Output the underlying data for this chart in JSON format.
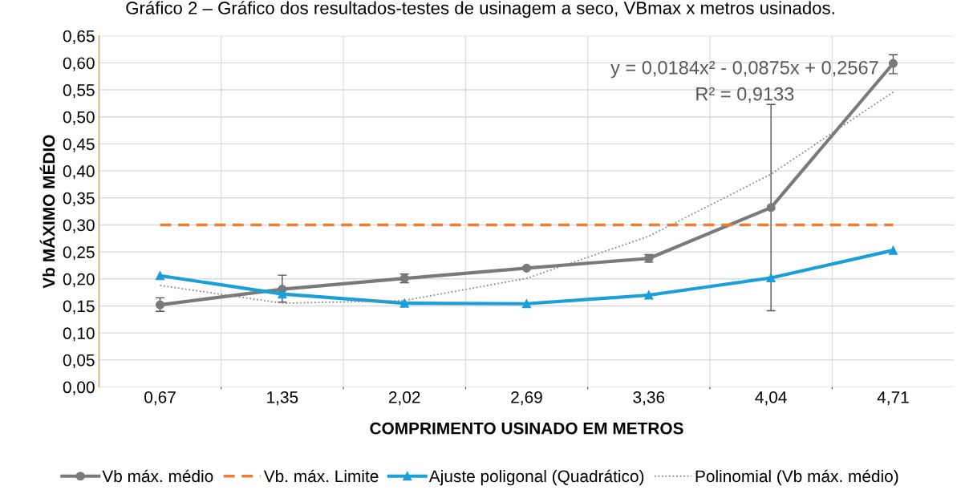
{
  "chart_data": {
    "type": "line",
    "title": "Gráfico 2 – Gráfico dos resultados-testes de usinagem a seco, VBmax x metros usinados.",
    "xlabel": "COMPRIMENTO USINADO EM METROS",
    "ylabel": "Vb MÁXIMO MÉDIO",
    "categories": [
      "0,67",
      "1,35",
      "2,02",
      "2,69",
      "3,36",
      "4,04",
      "4,71"
    ],
    "series": [
      {
        "name": "Vb máx. médio",
        "color": "#7a7a7a",
        "marker": "circle",
        "line_style": "solid",
        "values": [
          0.152,
          0.181,
          0.201,
          0.22,
          0.238,
          0.332,
          0.599
        ],
        "errors": [
          [
            0.14,
            0.165
          ],
          [
            0.157,
            0.207
          ],
          [
            0.193,
            0.209
          ],
          [
            0.218,
            0.222
          ],
          [
            0.231,
            0.245
          ],
          [
            0.141,
            0.523
          ],
          [
            0.58,
            0.615
          ]
        ]
      },
      {
        "name": "Vb. máx. Limite",
        "color": "#ed7d31",
        "marker": "none",
        "line_style": "dashed",
        "values": [
          0.3,
          0.3,
          0.3,
          0.3,
          0.3,
          0.3,
          0.3
        ]
      },
      {
        "name": "Ajuste poligonal (Quadrático)",
        "color": "#1a9fd8",
        "marker": "triangle",
        "line_style": "solid",
        "values": [
          0.206,
          0.172,
          0.155,
          0.154,
          0.17,
          0.202,
          0.253
        ]
      },
      {
        "name": "Polinomial (Vb máx. médio)",
        "color": "#8c8c8c",
        "marker": "none",
        "line_style": "dotted",
        "values": [
          0.188,
          0.155,
          0.16,
          0.201,
          0.279,
          0.394,
          0.546
        ]
      }
    ],
    "ylim": [
      0,
      0.65
    ],
    "yticks": [
      {
        "value": 0,
        "label": "0,00"
      },
      {
        "value": 0.05,
        "label": "0,05"
      },
      {
        "value": 0.1,
        "label": "0,10"
      },
      {
        "value": 0.15,
        "label": "0,15"
      },
      {
        "value": 0.2,
        "label": "0,20"
      },
      {
        "value": 0.25,
        "label": "0,25"
      },
      {
        "value": 0.3,
        "label": "0,30"
      },
      {
        "value": 0.35,
        "label": "0,35"
      },
      {
        "value": 0.4,
        "label": "0,40"
      },
      {
        "value": 0.45,
        "label": "0,45"
      },
      {
        "value": 0.5,
        "label": "0,50"
      },
      {
        "value": 0.55,
        "label": "0,55"
      },
      {
        "value": 0.6,
        "label": "0,60"
      },
      {
        "value": 0.65,
        "label": "0,65"
      }
    ],
    "annotations": [
      "y = 0,0184x² - 0,0875x + 0,2567",
      "R² = 0,9133"
    ],
    "grid": true,
    "legend": "bottom"
  }
}
